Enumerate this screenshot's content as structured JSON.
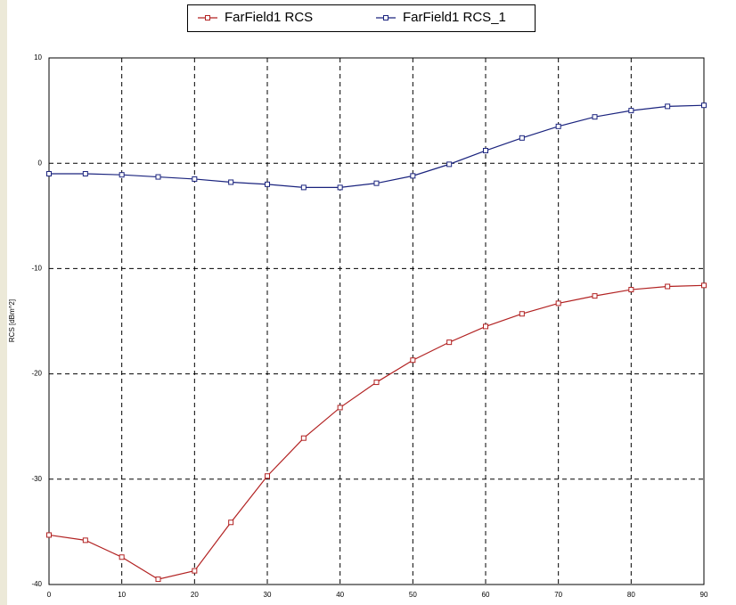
{
  "chart_data": {
    "type": "line",
    "ylabel": "RCS [dBm^2]",
    "x": [
      0,
      5,
      10,
      15,
      20,
      25,
      30,
      35,
      40,
      45,
      50,
      55,
      60,
      65,
      70,
      75,
      80,
      85,
      90
    ],
    "series": [
      {
        "name": "FarField1 RCS",
        "color": "#b22222",
        "values": [
          -35.3,
          -35.8,
          -37.4,
          -39.5,
          -38.7,
          -34.1,
          -29.7,
          -26.1,
          -23.2,
          -20.8,
          -18.7,
          -17.0,
          -15.5,
          -14.3,
          -13.3,
          -12.6,
          -12.0,
          -11.7,
          -11.6
        ]
      },
      {
        "name": "FarField1 RCS_1",
        "color": "#1a237e",
        "values": [
          -1.0,
          -1.0,
          -1.1,
          -1.3,
          -1.5,
          -1.8,
          -2.0,
          -2.3,
          -2.3,
          -1.9,
          -1.2,
          -0.1,
          1.2,
          2.4,
          3.5,
          4.4,
          5.0,
          5.4,
          5.5
        ]
      }
    ],
    "xlim": [
      0,
      90
    ],
    "xticks": [
      0,
      10,
      20,
      30,
      40,
      50,
      60,
      70,
      80,
      90
    ],
    "ylim": [
      -40,
      10
    ],
    "yticks": [
      -40,
      -30,
      -20,
      -10,
      0,
      10
    ],
    "grid": true,
    "legend": "top"
  }
}
